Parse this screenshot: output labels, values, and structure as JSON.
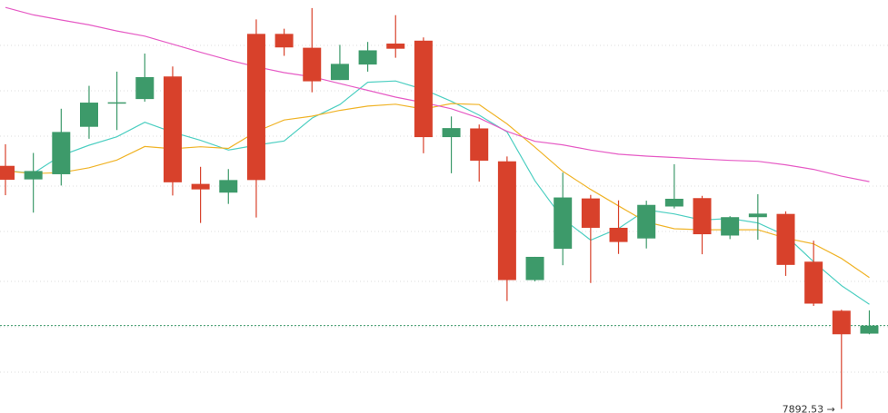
{
  "chart_data": {
    "type": "candlestick",
    "grid": true,
    "ylim": [
      7880,
      9160
    ],
    "colors": {
      "up": "#3d9a6a",
      "down": "#d8412b",
      "ma_short": "#4ecfc2",
      "ma_mid": "#f0b429",
      "ma_long": "#e65bc5",
      "current_price_line": "#3d9a6a",
      "grid": "#dddddd"
    },
    "candles": [
      {
        "index": 0,
        "open": 8646,
        "close": 8603,
        "high": 8713,
        "low": 8555
      },
      {
        "index": 1,
        "open": 8604,
        "close": 8630,
        "high": 8686,
        "low": 8501
      },
      {
        "index": 2,
        "open": 8620,
        "close": 8751,
        "high": 8823,
        "low": 8585
      },
      {
        "index": 3,
        "open": 8767,
        "close": 8842,
        "high": 8894,
        "low": 8730
      },
      {
        "index": 4,
        "open": 8840,
        "close": 8843,
        "high": 8938,
        "low": 8757
      },
      {
        "index": 5,
        "open": 8853,
        "close": 8921,
        "high": 8994,
        "low": 8845
      },
      {
        "index": 6,
        "open": 8923,
        "close": 8595,
        "high": 8954,
        "low": 8554
      },
      {
        "index": 7,
        "open": 8590,
        "close": 8573,
        "high": 8643,
        "low": 8469
      },
      {
        "index": 8,
        "open": 8563,
        "close": 8602,
        "high": 8636,
        "low": 8528
      },
      {
        "index": 9,
        "open": 9055,
        "close": 8602,
        "high": 9100,
        "low": 8486
      },
      {
        "index": 10,
        "open": 9055,
        "close": 9013,
        "high": 9071,
        "low": 8987
      },
      {
        "index": 11,
        "open": 9012,
        "close": 8908,
        "high": 9135,
        "low": 8874
      },
      {
        "index": 12,
        "open": 8912,
        "close": 8962,
        "high": 9021,
        "low": 8912
      },
      {
        "index": 13,
        "open": 8960,
        "close": 9004,
        "high": 9030,
        "low": 8938
      },
      {
        "index": 14,
        "open": 9025,
        "close": 9009,
        "high": 9113,
        "low": 8981
      },
      {
        "index": 15,
        "open": 9034,
        "close": 8735,
        "high": 9044,
        "low": 8685
      },
      {
        "index": 16,
        "open": 8735,
        "close": 8763,
        "high": 8799,
        "low": 8623
      },
      {
        "index": 17,
        "open": 8762,
        "close": 8662,
        "high": 8774,
        "low": 8597
      },
      {
        "index": 18,
        "open": 8660,
        "close": 8292,
        "high": 8675,
        "low": 8227
      },
      {
        "index": 19,
        "open": 8292,
        "close": 8364,
        "high": 8364,
        "low": 8288
      },
      {
        "index": 20,
        "open": 8389,
        "close": 8548,
        "high": 8625,
        "low": 8338
      },
      {
        "index": 21,
        "open": 8545,
        "close": 8454,
        "high": 8556,
        "low": 8283
      },
      {
        "index": 22,
        "open": 8454,
        "close": 8410,
        "high": 8539,
        "low": 8373
      },
      {
        "index": 23,
        "open": 8421,
        "close": 8525,
        "high": 8538,
        "low": 8390
      },
      {
        "index": 24,
        "open": 8520,
        "close": 8544,
        "high": 8651,
        "low": 8514
      },
      {
        "index": 25,
        "open": 8546,
        "close": 8434,
        "high": 8553,
        "low": 8372
      },
      {
        "index": 26,
        "open": 8430,
        "close": 8487,
        "high": 8490,
        "low": 8419
      },
      {
        "index": 27,
        "open": 8487,
        "close": 8498,
        "high": 8558,
        "low": 8417
      },
      {
        "index": 28,
        "open": 8497,
        "close": 8339,
        "high": 8505,
        "low": 8305
      },
      {
        "index": 29,
        "open": 8349,
        "close": 8219,
        "high": 8414,
        "low": 8212
      },
      {
        "index": 30,
        "open": 8197,
        "close": 8124,
        "high": 8200,
        "low": 7892.53
      },
      {
        "index": 31,
        "open": 8126,
        "close": 8151,
        "high": 8198,
        "low": 8124
      }
    ],
    "moving_averages": [
      {
        "color_key": "ma_short",
        "values": [
          8631,
          8623,
          8678,
          8710,
          8736,
          8781,
          8750,
          8725,
          8695,
          8710,
          8723,
          8794,
          8836,
          8905,
          8909,
          8883,
          8846,
          8803,
          8751,
          8600,
          8482,
          8416,
          8452,
          8510,
          8497,
          8478,
          8483,
          8469,
          8430,
          8349,
          8275,
          8217
        ]
      },
      {
        "color_key": "ma_mid",
        "values": [
          8630,
          8622,
          8625,
          8640,
          8664,
          8706,
          8699,
          8705,
          8700,
          8752,
          8788,
          8800,
          8818,
          8831,
          8837,
          8822,
          8839,
          8836,
          8776,
          8704,
          8629,
          8573,
          8522,
          8472,
          8451,
          8448,
          8448,
          8448,
          8422,
          8404,
          8359,
          8300
        ]
      },
      {
        "color_key": "ma_long",
        "values": [
          9137,
          9114,
          9098,
          9083,
          9064,
          9048,
          9023,
          8998,
          8974,
          8953,
          8935,
          8922,
          8901,
          8880,
          8859,
          8842,
          8823,
          8794,
          8753,
          8722,
          8711,
          8695,
          8682,
          8676,
          8672,
          8667,
          8663,
          8660,
          8649,
          8635,
          8614,
          8597
        ]
      }
    ],
    "current_price": 8151,
    "low_annotation": {
      "candle_index": 30,
      "label": "7892.53 →"
    }
  }
}
